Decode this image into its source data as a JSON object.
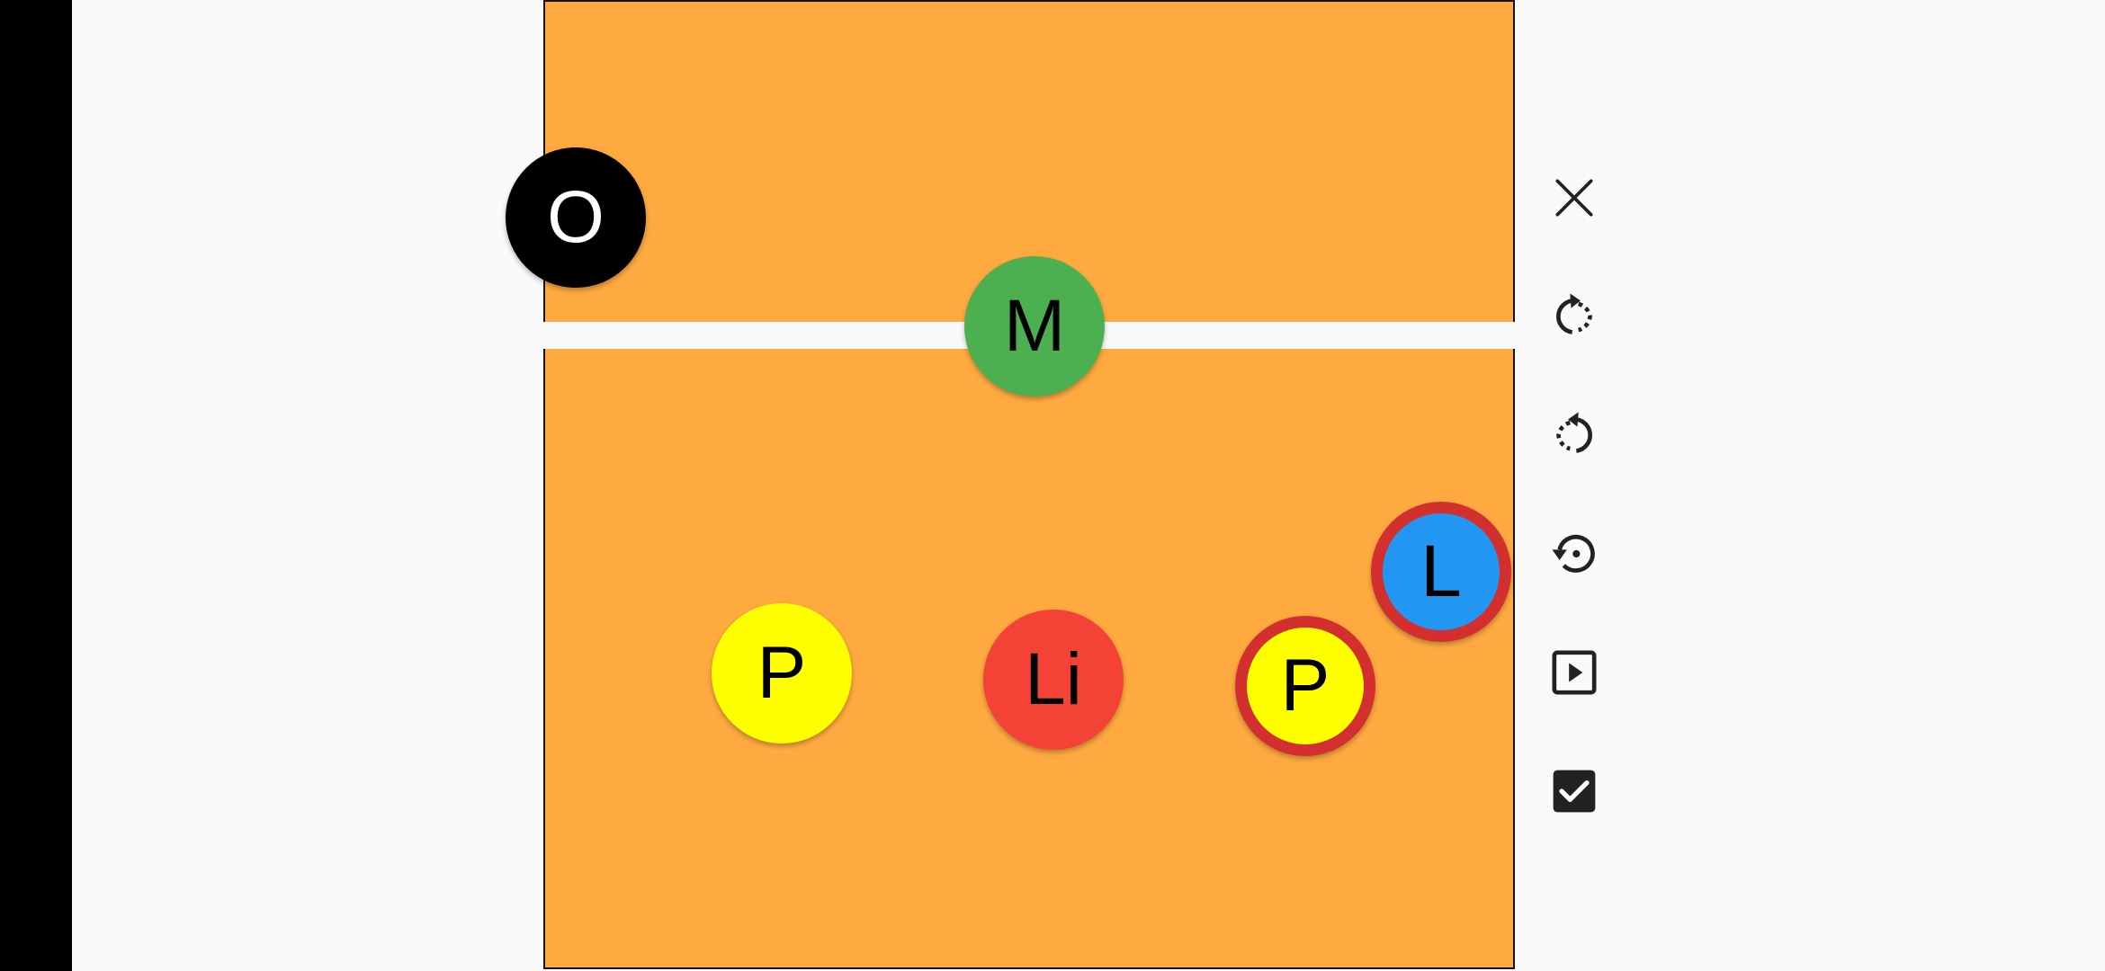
{
  "court": {
    "players": [
      {
        "id": "opponent",
        "label": "O",
        "color": "#000000",
        "selected": false
      },
      {
        "id": "middle",
        "label": "M",
        "color": "#4caf50",
        "selected": false
      },
      {
        "id": "left",
        "label": "L",
        "color": "#2196f3",
        "selected": true
      },
      {
        "id": "pass1",
        "label": "P",
        "color": "#ffff00",
        "selected": false
      },
      {
        "id": "libero",
        "label": "Li",
        "color": "#f44336",
        "selected": false
      },
      {
        "id": "pass2",
        "label": "P",
        "color": "#ffff00",
        "selected": true
      }
    ],
    "court_color": "#ffaa40",
    "selection_color": "#d32f2f"
  },
  "toolbar": {
    "buttons": [
      {
        "icon": "close-icon"
      },
      {
        "icon": "rotate-clockwise-icon"
      },
      {
        "icon": "rotate-counterclockwise-icon"
      },
      {
        "icon": "reset-rotation-icon"
      },
      {
        "icon": "play-icon"
      },
      {
        "icon": "checkbox-checked-icon"
      }
    ]
  }
}
